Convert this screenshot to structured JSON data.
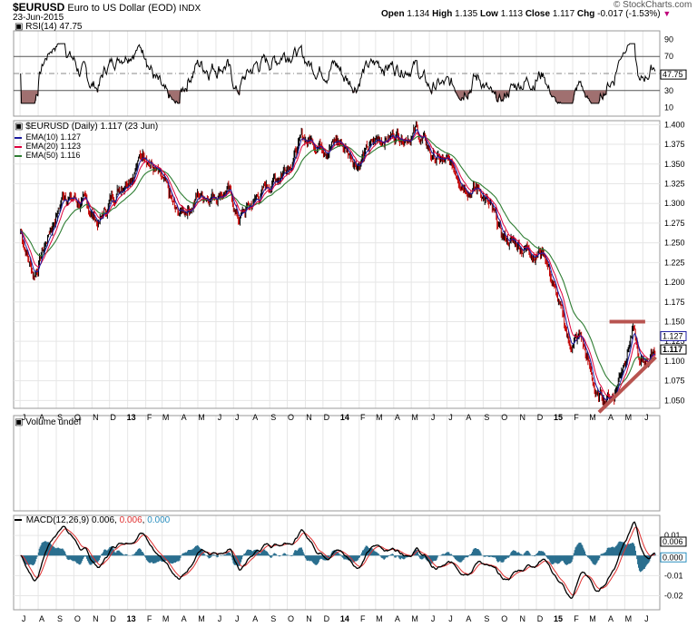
{
  "header": {
    "symbol": "$EURUSD",
    "name": "Euro to US Dollar (EOD)",
    "exchange": "INDX",
    "date": "23-Jun-2015",
    "ohlc": {
      "open_label": "Open",
      "open": "1.134",
      "high_label": "High",
      "high": "1.135",
      "low_label": "Low",
      "low": "1.113",
      "close_label": "Close",
      "close": "1.117",
      "chg_label": "Chg",
      "chg": "-0.017 (-1.53%)"
    },
    "credit": "© StockCharts.com"
  },
  "rsi_panel": {
    "label": "RSI(14) 47.75",
    "ticks": [
      "90",
      "70",
      "50",
      "30",
      "10"
    ],
    "current": "47.75"
  },
  "price_panel": {
    "label": "$EURUSD (Daily) 1.117 (23 Jun)",
    "ema10_label": "EMA(10) 1.127",
    "ema20_label": "EMA(20) 1.123",
    "ema50_label": "EMA(50) 1.116",
    "ticks": [
      "1.400",
      "1.375",
      "1.350",
      "1.325",
      "1.300",
      "1.275",
      "1.250",
      "1.225",
      "1.200",
      "1.175",
      "1.150",
      "1.125",
      "1.100",
      "1.075",
      "1.050"
    ],
    "last_tags": [
      "1.127",
      "1.117"
    ]
  },
  "volume_panel": {
    "label": "Volume undef"
  },
  "macd_panel": {
    "label_macd": "MACD(12,26,9)",
    "macd_value": "0.006",
    "signal_value": "0.006",
    "hist_value": "0.000",
    "ticks": [
      "0.01",
      "0.00",
      "-0.01",
      "-0.02"
    ],
    "last_tags": [
      "0.006",
      "0.000"
    ]
  },
  "x_axis": {
    "labels": [
      "J",
      "A",
      "S",
      "O",
      "N",
      "D",
      "13",
      "F",
      "M",
      "A",
      "M",
      "J",
      "J",
      "A",
      "S",
      "O",
      "N",
      "D",
      "14",
      "F",
      "M",
      "A",
      "M",
      "J",
      "J",
      "A",
      "S",
      "O",
      "N",
      "D",
      "15",
      "F",
      "M",
      "A",
      "M",
      "J"
    ]
  },
  "colors": {
    "ema10": "#1a1aa0",
    "ema20": "#e0003c",
    "ema50": "#2e7d32",
    "macd": "#000000",
    "signal": "#e03030",
    "histogram": "#2a6f8f",
    "rsi_fill": "#a07070",
    "trendline": "#b85450",
    "grid": "#e6e6e6"
  },
  "chart_data": {
    "type": "line",
    "price_series": [
      {
        "name": "$EURUSD",
        "x": [
          "2012-07-02",
          "2012-07-24",
          "2012-09-15",
          "2012-10-15",
          "2012-11-13",
          "2012-12-15",
          "2013-02-01",
          "2013-03-27",
          "2013-05-01",
          "2013-06-20",
          "2013-07-09",
          "2013-09-15",
          "2013-10-25",
          "2013-12-27",
          "2014-01-28",
          "2014-03-15",
          "2014-05-08",
          "2014-06-05",
          "2014-07-15",
          "2014-08-31",
          "2014-10-03",
          "2014-11-15",
          "2014-12-15",
          "2015-01-26",
          "2015-02-15",
          "2015-03-16",
          "2015-04-13",
          "2015-05-15",
          "2015-05-27",
          "2015-06-23"
        ],
        "y": [
          1.265,
          1.21,
          1.315,
          1.3,
          1.275,
          1.32,
          1.37,
          1.28,
          1.31,
          1.32,
          1.28,
          1.335,
          1.38,
          1.38,
          1.355,
          1.385,
          1.395,
          1.36,
          1.34,
          1.315,
          1.255,
          1.245,
          1.24,
          1.12,
          1.13,
          1.05,
          1.06,
          1.145,
          1.09,
          1.117
        ]
      },
      {
        "name": "EMA(10)",
        "y_last": 1.127
      },
      {
        "name": "EMA(20)",
        "y_last": 1.123
      },
      {
        "name": "EMA(50)",
        "y_last": 1.116
      }
    ],
    "ylim": [
      1.04,
      1.405
    ],
    "rsi": {
      "ylim": [
        0,
        100
      ],
      "last": 47.75,
      "levels": [
        30,
        70
      ]
    },
    "macd": {
      "ylim": [
        -0.027,
        0.02
      ],
      "macd_last": 0.006,
      "signal_last": 0.006,
      "hist_last": 0.0
    },
    "annotations": [
      {
        "type": "horizontal_resistance",
        "y": 1.15,
        "from": "2015-04-05",
        "to": "2015-06-05"
      },
      {
        "type": "rising_trendline",
        "from": [
          "2015-03-18",
          1.035
        ],
        "to": [
          "2015-06-23",
          1.105
        ]
      }
    ],
    "xlim": [
      "2012-06-20",
      "2015-06-30"
    ]
  }
}
